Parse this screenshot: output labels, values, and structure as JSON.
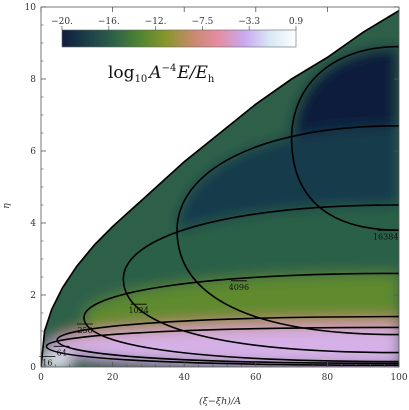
{
  "chart_data": {
    "type": "heatmap",
    "title": "",
    "xlabel": "(ξ−ξh)/A",
    "ylabel": "η",
    "xlim": [
      0,
      100
    ],
    "ylim": [
      0,
      10
    ],
    "x_ticks": [
      "0",
      "20",
      "40",
      "60",
      "80",
      "100"
    ],
    "y_ticks": [
      "0",
      "2",
      "4",
      "6",
      "8",
      "10"
    ],
    "formula": {
      "base": "log",
      "sub": "10",
      "A": "A",
      "exp": "−4",
      "rest": "E/E",
      "rest_sub": "h"
    },
    "colorbar": {
      "labels": [
        "−20.",
        "−16.",
        "−12.",
        "−7.5",
        "−3.3",
        "0.9"
      ],
      "range": [
        -20,
        0.9
      ],
      "colors": [
        "#0f1d3c",
        "#1c4048",
        "#2f6148",
        "#4f8530",
        "#88962a",
        "#c68a6c",
        "#e48da0",
        "#c9a8f0",
        "#d8e8f4",
        "#ffffff"
      ]
    },
    "boundary": {
      "description_points_x": [
        0.3,
        1,
        3,
        6,
        10,
        15,
        20,
        30,
        40,
        50,
        60,
        70,
        80,
        90,
        100
      ],
      "description_points_y": [
        0.3,
        1.0,
        1.6,
        2.2,
        2.8,
        3.4,
        3.9,
        4.8,
        5.7,
        6.5,
        7.3,
        8.0,
        8.6,
        9.3,
        9.9
      ]
    },
    "contours": [
      {
        "label": "16",
        "level": 16,
        "vertex_x": 1.5,
        "y_bottom": 0.05,
        "y_top": 1.1
      },
      {
        "label": "64",
        "level": 64,
        "vertex_x": 4.5,
        "y_bottom": 0.1,
        "y_top": 1.4
      },
      {
        "label": "256",
        "level": 256,
        "vertex_x": 12,
        "y_bottom": 0.15,
        "y_top": 2.6
      },
      {
        "label": "1024",
        "level": 1024,
        "vertex_x": 23,
        "y_bottom": 0.4,
        "y_top": 4.5
      },
      {
        "label": "4096",
        "level": 4096,
        "vertex_x": 38,
        "y_bottom": 0.9,
        "y_top": 6.7
      },
      {
        "label": "16384",
        "level": 16384,
        "vertex_x": 70,
        "y_bottom": 3.8,
        "y_top": 8.9
      }
    ],
    "contour_labels": [
      {
        "text": "16",
        "x": 1.5,
        "y": 0.1
      },
      {
        "text": "64",
        "x": 5.5,
        "y": 0.38
      },
      {
        "text": "256",
        "x": 12,
        "y": 1.0
      },
      {
        "text": "1024",
        "x": 27,
        "y": 1.55
      },
      {
        "text": "4096",
        "x": 55,
        "y": 2.2
      },
      {
        "text": "16384",
        "x": 96,
        "y": 3.6
      }
    ]
  }
}
